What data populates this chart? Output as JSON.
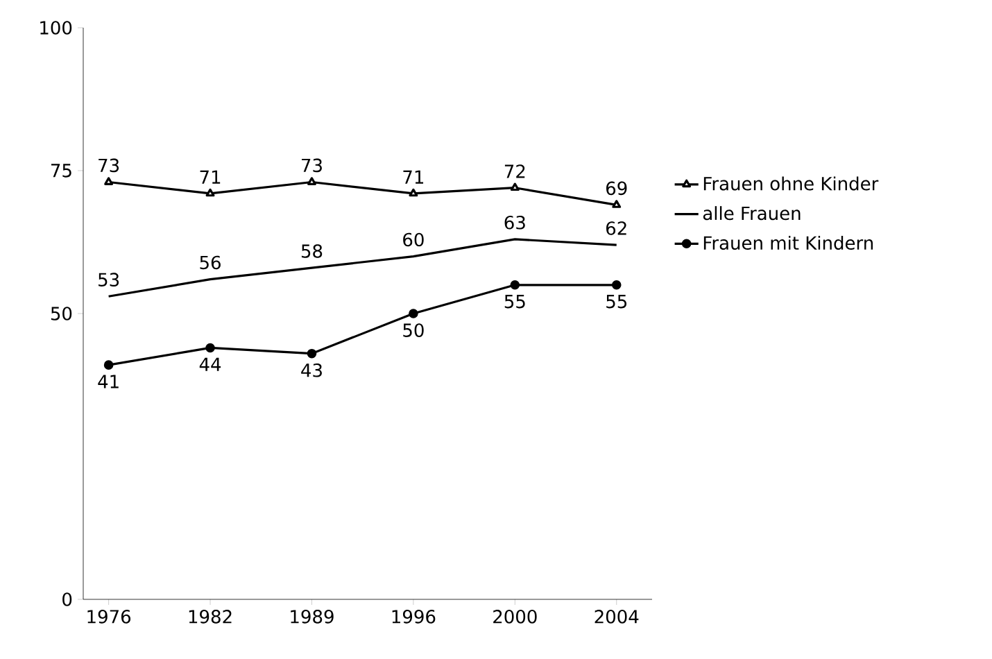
{
  "chart_data": {
    "type": "line",
    "categories": [
      "1976",
      "1982",
      "1989",
      "1996",
      "2000",
      "2004"
    ],
    "series": [
      {
        "name": "Frauen ohne Kinder",
        "color": "#000000",
        "marker": "triangle",
        "values": [
          73,
          71,
          73,
          71,
          72,
          69
        ]
      },
      {
        "name": "alle Frauen",
        "color": "#000000",
        "marker": "none",
        "values": [
          53,
          56,
          58,
          60,
          63,
          62
        ]
      },
      {
        "name": "Frauen mit Kindern",
        "color": "#000000",
        "marker": "circle",
        "values": [
          41,
          44,
          43,
          50,
          55,
          55
        ]
      }
    ],
    "ylim": [
      0,
      100
    ],
    "yticks": [
      0,
      50,
      75,
      100
    ],
    "data_labels": true,
    "legend": "right",
    "grid": false
  }
}
